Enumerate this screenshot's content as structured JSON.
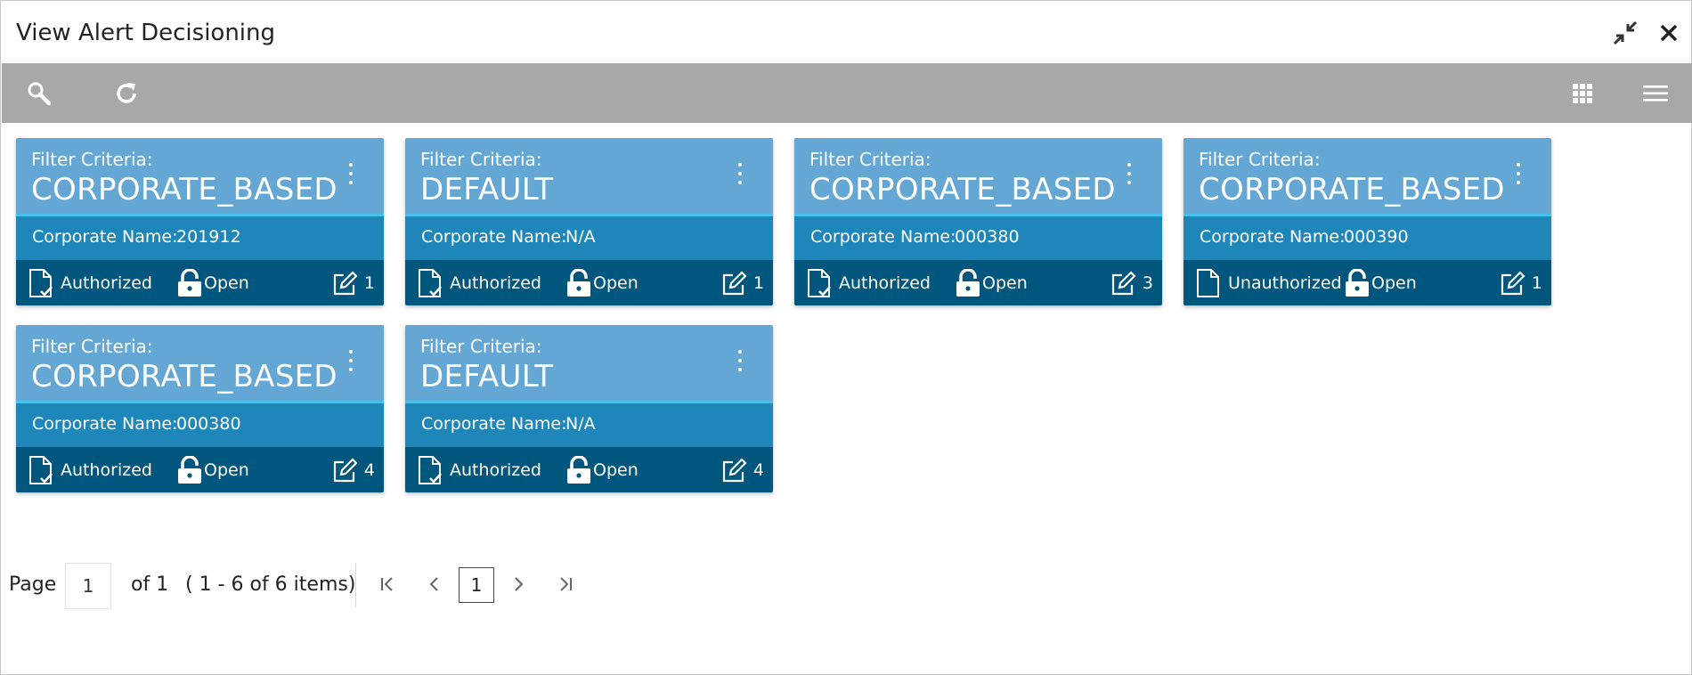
{
  "window": {
    "title": "View Alert Decisioning"
  },
  "icons": {
    "minimize": "collapse-arrows-icon",
    "close": "close-icon",
    "search": "search-icon",
    "refresh": "refresh-icon",
    "grid_view": "grid-view-icon",
    "list_view": "hamburger-menu-icon"
  },
  "colors": {
    "toolbar": "#a8a8a8",
    "card_head": "#64a7d4",
    "card_mid": "#1e86b9",
    "card_foot": "#00567d"
  },
  "cards": [
    {
      "label": "Filter Criteria:",
      "value": "CORPORATE_BASED",
      "corp_label": "Corporate Name:",
      "corp_value": "201912",
      "status": "Authorized",
      "lock": "Open",
      "edits": "1"
    },
    {
      "label": "Filter Criteria:",
      "value": "DEFAULT",
      "corp_label": "Corporate Name:",
      "corp_value": "N/A",
      "status": "Authorized",
      "lock": "Open",
      "edits": "1"
    },
    {
      "label": "Filter Criteria:",
      "value": "CORPORATE_BASED",
      "corp_label": "Corporate Name:",
      "corp_value": "000380",
      "status": "Authorized",
      "lock": "Open",
      "edits": "3"
    },
    {
      "label": "Filter Criteria:",
      "value": "CORPORATE_BASED",
      "corp_label": "Corporate Name:",
      "corp_value": "000390",
      "status": "Unauthorized",
      "lock": "Open",
      "edits": "1"
    },
    {
      "label": "Filter Criteria:",
      "value": "CORPORATE_BASED",
      "corp_label": "Corporate Name:",
      "corp_value": "000380",
      "status": "Authorized",
      "lock": "Open",
      "edits": "4"
    },
    {
      "label": "Filter Criteria:",
      "value": "DEFAULT",
      "corp_label": "Corporate Name:",
      "corp_value": "N/A",
      "status": "Authorized",
      "lock": "Open",
      "edits": "4"
    }
  ],
  "pagination": {
    "page_label": "Page",
    "page_value": "1",
    "of_label": "of 1",
    "items_label": "( 1 - 6 of 6 items)",
    "current_page": "1"
  }
}
